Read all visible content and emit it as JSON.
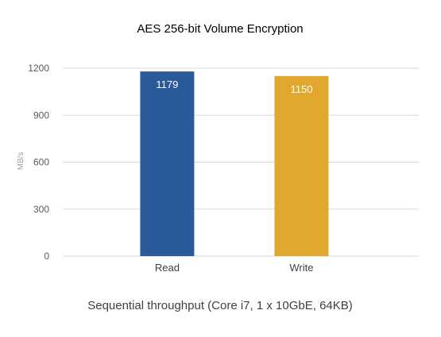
{
  "chart_data": {
    "type": "bar",
    "title": "AES 256-bit Volume Encryption",
    "xlabel": "Sequential throughput (Core i7, 1 x 10GbE, 64KB)",
    "ylabel": "MB/s",
    "categories": [
      "Read",
      "Write"
    ],
    "values": [
      1179,
      1150
    ],
    "ylim": [
      0,
      1200
    ],
    "yticks": [
      0,
      300,
      600,
      900,
      1200
    ],
    "grid": true,
    "legend": "none",
    "colors": [
      "#2b5a9b",
      "#e1a72e"
    ]
  }
}
